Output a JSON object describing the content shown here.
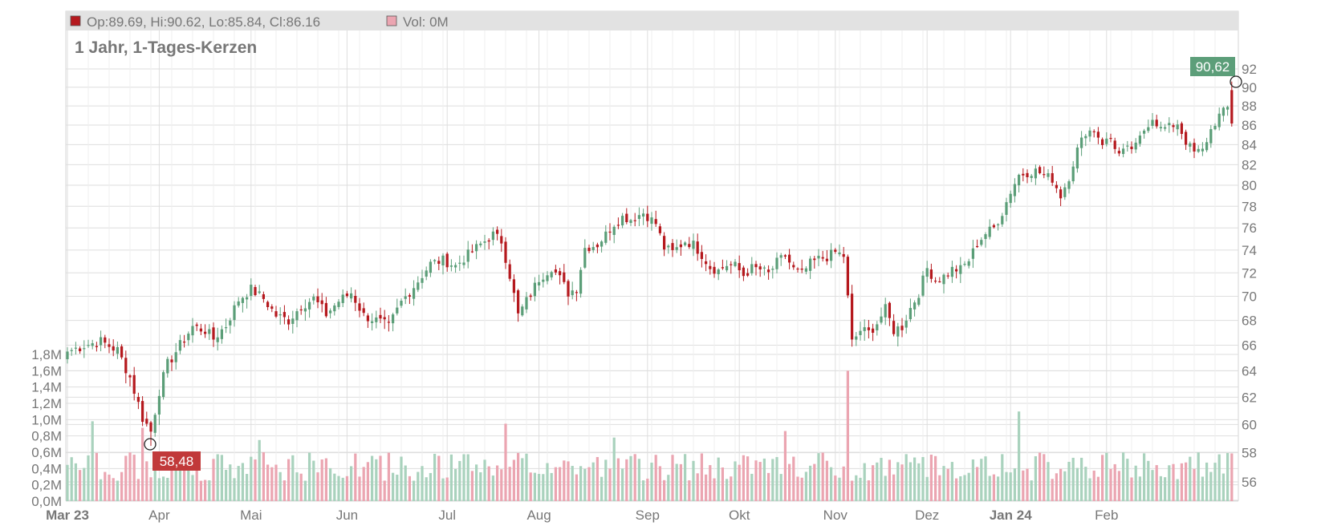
{
  "legend": {
    "ohlc": "Op:89.69, Hi:90.62, Lo:85.84, Cl:86.16",
    "volume": "Vol: 0M"
  },
  "colors": {
    "up": "#5b9e78",
    "down": "#b5191e",
    "vol_up": "#a9d2bd",
    "vol_down": "#eba5b1",
    "high_tag": "#5c9e79",
    "low_tag": "#c1393a"
  },
  "chart_data": {
    "type": "candlestick",
    "title": "1 Jahr, 1-Tages-Kerzen",
    "price_axis": {
      "ticks": [
        "92",
        "90",
        "88",
        "86",
        "84",
        "82",
        "80",
        "78",
        "76",
        "74",
        "72",
        "70",
        "68",
        "66",
        "64",
        "62",
        "60",
        "58",
        "56"
      ],
      "scale": "log",
      "side": "right"
    },
    "volume_axis": {
      "ticks": [
        "1,8M",
        "1,6M",
        "1,4M",
        "1,2M",
        "1,0M",
        "0,8M",
        "0,6M",
        "0,4M",
        "0,2M",
        "0,0M"
      ],
      "max": 1.8,
      "side": "left"
    },
    "x_labels": [
      {
        "label": "Mar 23",
        "bold": true
      },
      {
        "label": "Apr",
        "bold": false
      },
      {
        "label": "Mai",
        "bold": false
      },
      {
        "label": "Jun",
        "bold": false
      },
      {
        "label": "Jul",
        "bold": false
      },
      {
        "label": "Aug",
        "bold": false
      },
      {
        "label": "Sep",
        "bold": false
      },
      {
        "label": "Okt",
        "bold": false
      },
      {
        "label": "Nov",
        "bold": false
      },
      {
        "label": "Dez",
        "bold": false
      },
      {
        "label": "Jan 24",
        "bold": true
      },
      {
        "label": "Feb",
        "bold": false
      }
    ],
    "annotations": {
      "high": {
        "label": "90,62",
        "value": 90.62
      },
      "low": {
        "label": "58,48",
        "value": 58.48
      }
    },
    "close_anchors": [
      [
        0,
        65.5
      ],
      [
        4,
        66.0
      ],
      [
        8,
        66.3
      ],
      [
        12,
        65.6
      ],
      [
        15,
        63.5
      ],
      [
        18,
        60.5
      ],
      [
        20,
        59.5
      ],
      [
        22,
        62.5
      ],
      [
        24,
        64.5
      ],
      [
        27,
        66.0
      ],
      [
        30,
        67.5
      ],
      [
        33,
        67.2
      ],
      [
        35,
        66.5
      ],
      [
        38,
        67.6
      ],
      [
        41,
        69.7
      ],
      [
        44,
        70.6
      ],
      [
        47,
        69.8
      ],
      [
        50,
        68.4
      ],
      [
        53,
        68.0
      ],
      [
        56,
        69.2
      ],
      [
        59,
        69.8
      ],
      [
        62,
        68.5
      ],
      [
        65,
        69.6
      ],
      [
        68,
        70.3
      ],
      [
        71,
        68.4
      ],
      [
        74,
        68.0
      ],
      [
        77,
        67.5
      ],
      [
        80,
        69.5
      ],
      [
        84,
        71.3
      ],
      [
        87,
        72.8
      ],
      [
        90,
        73.1
      ],
      [
        93,
        72.6
      ],
      [
        96,
        73.6
      ],
      [
        99,
        74.5
      ],
      [
        102,
        75.4
      ],
      [
        104,
        74.8
      ],
      [
        106,
        71.8
      ],
      [
        108,
        68.4
      ],
      [
        111,
        70.2
      ],
      [
        113,
        71.5
      ],
      [
        116,
        72.5
      ],
      [
        118,
        71.5
      ],
      [
        120,
        70.3
      ],
      [
        122,
        70.7
      ],
      [
        124,
        74.2
      ],
      [
        127,
        74.5
      ],
      [
        129,
        75.4
      ],
      [
        131,
        76.4
      ],
      [
        133,
        77.0
      ],
      [
        135,
        76.8
      ],
      [
        138,
        77.4
      ],
      [
        141,
        76.4
      ],
      [
        143,
        74.2
      ],
      [
        145,
        73.8
      ],
      [
        148,
        74.8
      ],
      [
        150,
        74.5
      ],
      [
        152,
        73.6
      ],
      [
        154,
        72.5
      ],
      [
        156,
        72.2
      ],
      [
        158,
        72.7
      ],
      [
        160,
        72.6
      ],
      [
        162,
        71.8
      ],
      [
        164,
        72.4
      ],
      [
        166,
        72.3
      ],
      [
        168,
        71.9
      ],
      [
        170,
        72.9
      ],
      [
        172,
        73.5
      ],
      [
        174,
        72.3
      ],
      [
        176,
        71.9
      ],
      [
        178,
        72.8
      ],
      [
        180,
        73.2
      ],
      [
        182,
        73.4
      ],
      [
        184,
        73.8
      ],
      [
        186,
        73.5
      ],
      [
        188,
        66.2
      ],
      [
        190,
        67.2
      ],
      [
        192,
        67.0
      ],
      [
        194,
        67.8
      ],
      [
        196,
        68.9
      ],
      [
        198,
        67.2
      ],
      [
        200,
        67.5
      ],
      [
        202,
        69.0
      ],
      [
        204,
        70.3
      ],
      [
        206,
        72.4
      ],
      [
        208,
        71.4
      ],
      [
        210,
        71.7
      ],
      [
        212,
        72.3
      ],
      [
        214,
        72.3
      ],
      [
        216,
        73.1
      ],
      [
        218,
        74.6
      ],
      [
        220,
        75.5
      ],
      [
        222,
        76.0
      ],
      [
        224,
        77.4
      ],
      [
        226,
        79.4
      ],
      [
        228,
        81.0
      ],
      [
        230,
        81.2
      ],
      [
        232,
        81.4
      ],
      [
        234,
        81.0
      ],
      [
        236,
        80.6
      ],
      [
        238,
        79.0
      ],
      [
        240,
        80.8
      ],
      [
        242,
        83.5
      ],
      [
        244,
        85.3
      ],
      [
        246,
        85.5
      ],
      [
        248,
        84.2
      ],
      [
        250,
        84.6
      ],
      [
        252,
        83.0
      ],
      [
        254,
        83.5
      ],
      [
        256,
        83.8
      ],
      [
        258,
        85.5
      ],
      [
        260,
        86.8
      ],
      [
        262,
        85.6
      ],
      [
        264,
        85.8
      ],
      [
        266,
        86.2
      ],
      [
        268,
        84.3
      ],
      [
        270,
        83.2
      ],
      [
        272,
        83.4
      ],
      [
        274,
        85.5
      ],
      [
        276,
        87.0
      ],
      [
        278,
        87.8
      ],
      [
        279,
        86.16
      ]
    ],
    "volume_spikes": [
      [
        6,
        0.98
      ],
      [
        18,
        0.9
      ],
      [
        46,
        0.75
      ],
      [
        105,
        0.95
      ],
      [
        131,
        0.78
      ],
      [
        172,
        0.86
      ],
      [
        187,
        1.6
      ],
      [
        228,
        1.1
      ]
    ]
  }
}
